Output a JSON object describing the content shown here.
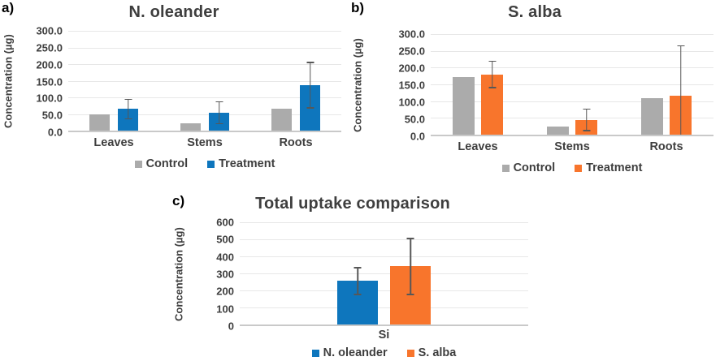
{
  "figure": {
    "panels": [
      {
        "label": "a)"
      },
      {
        "label": "b)"
      },
      {
        "label": "c)"
      }
    ]
  },
  "chart_data": [
    {
      "id": "a",
      "type": "bar",
      "title": "N. oleander",
      "ylabel": "Concentration (µg)",
      "xlabel": "",
      "categories": [
        "Leaves",
        "Stems",
        "Roots"
      ],
      "series": [
        {
          "name": "Control",
          "color": "#ABABAB",
          "values": [
            50,
            21,
            65
          ]
        },
        {
          "name": "Treatment",
          "color": "#0E76BD",
          "values": [
            65,
            53,
            137
          ],
          "error_low": [
            34,
            19,
            67
          ],
          "error_high": [
            96,
            88,
            207
          ]
        }
      ],
      "ylim": [
        0,
        300
      ],
      "ytick_step": 50,
      "ytick_format": "1dp",
      "grid": true,
      "legend_position": "bottom"
    },
    {
      "id": "b",
      "type": "bar",
      "title": "S. alba",
      "ylabel": "Concentration (µg)",
      "xlabel": "",
      "categories": [
        "Leaves",
        "Stems",
        "Roots"
      ],
      "series": [
        {
          "name": "Control",
          "color": "#ABABAB",
          "values": [
            172,
            25,
            110
          ]
        },
        {
          "name": "Treatment",
          "color": "#F8752C",
          "values": [
            178,
            44,
            117
          ],
          "error_low": [
            138,
            10,
            0
          ],
          "error_high": [
            221,
            78,
            267
          ]
        }
      ],
      "ylim": [
        0,
        300
      ],
      "ytick_step": 50,
      "ytick_format": "1dp",
      "grid": true,
      "legend_position": "bottom"
    },
    {
      "id": "c",
      "type": "bar",
      "title": "Total uptake comparison",
      "ylabel": "Concentration (µg)",
      "xlabel": "",
      "categories": [
        "Si"
      ],
      "series": [
        {
          "name": "N. oleander",
          "color": "#0E76BD",
          "values": [
            258
          ],
          "error_low": [
            172
          ],
          "error_high": [
            338
          ]
        },
        {
          "name": "S. alba",
          "color": "#F8752C",
          "values": [
            341
          ],
          "error_low": [
            173
          ],
          "error_high": [
            509
          ]
        }
      ],
      "ylim": [
        0,
        600
      ],
      "ytick_step": 100,
      "ytick_format": "int",
      "grid": true,
      "legend_position": "bottom"
    }
  ]
}
